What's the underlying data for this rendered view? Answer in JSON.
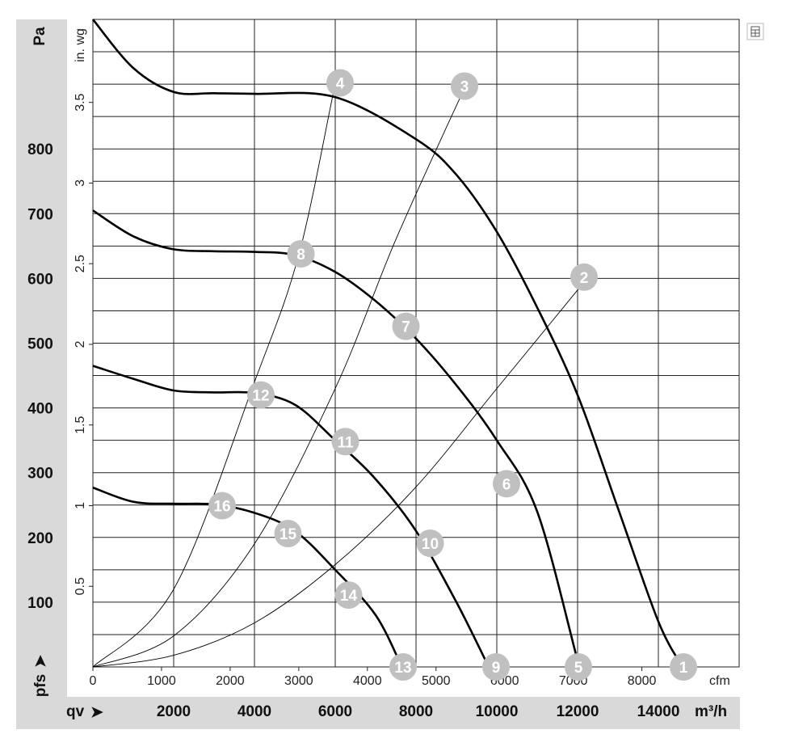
{
  "chart_data": {
    "type": "line",
    "units": {
      "x_primary": "cfm",
      "x_secondary": "m³/h",
      "y_primary": "in. wg",
      "y_secondary": "Pa",
      "x_axis_symbol": "qv",
      "y_axis_symbol": "pfs"
    },
    "x_ticks_cfm": [
      "0",
      "1000",
      "2000",
      "3000",
      "4000",
      "5000",
      "6000",
      "7000",
      "8000"
    ],
    "x_ticks_m3h": [
      "2000",
      "4000",
      "6000",
      "8000",
      "10000",
      "12000",
      "14000"
    ],
    "y_ticks_inwg": [
      "0.5",
      "1",
      "1.5",
      "2",
      "2.5",
      "3",
      "3.5"
    ],
    "y_ticks_pa": [
      "100",
      "200",
      "300",
      "400",
      "500",
      "600",
      "700",
      "800"
    ],
    "xlim_m3h": [
      0,
      16000
    ],
    "ylim_pa": [
      0,
      1000
    ],
    "series": [
      {
        "values_m3h_pa": [
          [
            0,
            1000
          ],
          [
            1000,
            925
          ],
          [
            2000,
            888
          ],
          [
            3000,
            886
          ],
          [
            4000,
            885
          ],
          [
            6000,
            880
          ],
          [
            8000,
            815
          ],
          [
            9000,
            760
          ],
          [
            10000,
            672
          ],
          [
            11000,
            555
          ],
          [
            12000,
            420
          ],
          [
            13000,
            245
          ],
          [
            14000,
            70
          ],
          [
            14600,
            0
          ]
        ]
      },
      {
        "values_m3h_pa": [
          [
            0,
            705
          ],
          [
            1000,
            665
          ],
          [
            2000,
            645
          ],
          [
            3000,
            642
          ],
          [
            4000,
            641
          ],
          [
            5000,
            636
          ],
          [
            6000,
            610
          ],
          [
            7000,
            565
          ],
          [
            8000,
            507
          ],
          [
            9000,
            435
          ],
          [
            10000,
            350
          ],
          [
            11000,
            240
          ],
          [
            12000,
            10
          ],
          [
            12070,
            0
          ]
        ]
      },
      {
        "values_m3h_pa": [
          [
            0,
            465
          ],
          [
            1000,
            445
          ],
          [
            2000,
            427
          ],
          [
            3000,
            424
          ],
          [
            4000,
            423
          ],
          [
            5000,
            405
          ],
          [
            6000,
            350
          ],
          [
            7000,
            290
          ],
          [
            8000,
            210
          ],
          [
            9000,
            100
          ],
          [
            9800,
            0
          ]
        ]
      },
      {
        "values_m3h_pa": [
          [
            0,
            277
          ],
          [
            1000,
            255
          ],
          [
            2000,
            252
          ],
          [
            3000,
            251
          ],
          [
            4000,
            238
          ],
          [
            5000,
            210
          ],
          [
            6000,
            150
          ],
          [
            7000,
            80
          ],
          [
            7650,
            0
          ]
        ]
      }
    ],
    "system_lines": [
      {
        "values_m3h_pa": [
          [
            0,
            0
          ],
          [
            2000,
            18
          ],
          [
            4000,
            68
          ],
          [
            6000,
            158
          ],
          [
            8000,
            278
          ],
          [
            10000,
            430
          ],
          [
            12000,
            582
          ],
          [
            12200,
            600
          ]
        ]
      },
      {
        "values_m3h_pa": [
          [
            0,
            0
          ],
          [
            2000,
            48
          ],
          [
            4000,
            190
          ],
          [
            6000,
            430
          ],
          [
            7500,
            660
          ],
          [
            9200,
            894
          ]
        ]
      },
      {
        "values_m3h_pa": [
          [
            0,
            0
          ],
          [
            2000,
            120
          ],
          [
            4000,
            440
          ],
          [
            5100,
            637
          ],
          [
            6000,
            900
          ],
          [
            6100,
            905
          ]
        ]
      }
    ],
    "operating_points": [
      {
        "label": "1",
        "m3h": 14620,
        "pa": 0
      },
      {
        "label": "2",
        "m3h": 12160,
        "pa": 602
      },
      {
        "label": "3",
        "m3h": 9200,
        "pa": 897
      },
      {
        "label": "4",
        "m3h": 6120,
        "pa": 902
      },
      {
        "label": "5",
        "m3h": 12020,
        "pa": 0
      },
      {
        "label": "6",
        "m3h": 10240,
        "pa": 283
      },
      {
        "label": "7",
        "m3h": 7750,
        "pa": 526
      },
      {
        "label": "8",
        "m3h": 5150,
        "pa": 638
      },
      {
        "label": "9",
        "m3h": 9980,
        "pa": 0
      },
      {
        "label": "10",
        "m3h": 8350,
        "pa": 191
      },
      {
        "label": "11",
        "m3h": 6250,
        "pa": 348
      },
      {
        "label": "12",
        "m3h": 4160,
        "pa": 420
      },
      {
        "label": "13",
        "m3h": 7680,
        "pa": 0
      },
      {
        "label": "14",
        "m3h": 6330,
        "pa": 111
      },
      {
        "label": "15",
        "m3h": 4830,
        "pa": 206
      },
      {
        "label": "16",
        "m3h": 3200,
        "pa": 249
      }
    ],
    "grid": true
  }
}
